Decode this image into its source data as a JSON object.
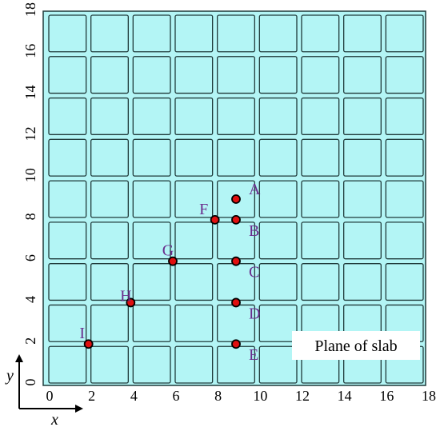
{
  "diagram": {
    "x_ticks": [
      "0",
      "2",
      "4",
      "6",
      "8",
      "10",
      "12",
      "14",
      "16",
      "18"
    ],
    "y_ticks": [
      "0",
      "2",
      "4",
      "6",
      "8",
      "10",
      "12",
      "14",
      "16",
      "18"
    ],
    "axis_x_letter": "x",
    "axis_y_letter": "y",
    "legend_label": "Plane of slab",
    "grid_cells": 9,
    "extent": [
      0,
      18
    ],
    "colors": {
      "slab_fill": "#b3f5f5",
      "slab_stroke": "#1f3a3a",
      "point_fill": "#e01010",
      "label_color": "#6a2c8c"
    },
    "points": [
      {
        "label": "A",
        "x": 9,
        "y": 9
      },
      {
        "label": "B",
        "x": 9,
        "y": 8
      },
      {
        "label": "C",
        "x": 9,
        "y": 6
      },
      {
        "label": "D",
        "x": 9,
        "y": 4
      },
      {
        "label": "E",
        "x": 9,
        "y": 2
      },
      {
        "label": "F",
        "x": 8,
        "y": 8
      },
      {
        "label": "G",
        "x": 6,
        "y": 6
      },
      {
        "label": "H",
        "x": 4,
        "y": 4
      },
      {
        "label": "I",
        "x": 2,
        "y": 2
      }
    ]
  }
}
